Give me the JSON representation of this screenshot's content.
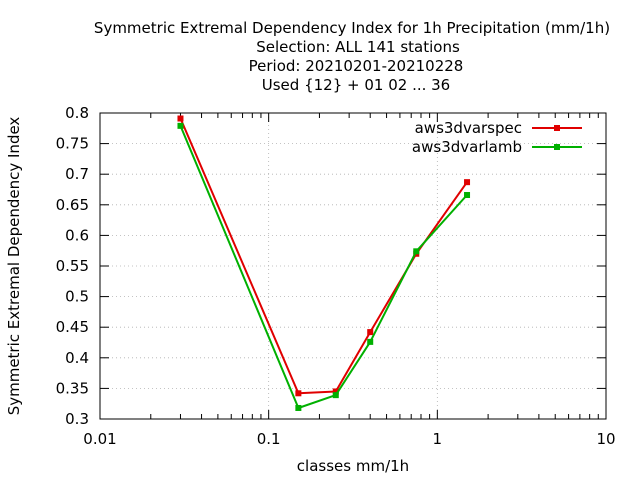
{
  "chart_data": {
    "type": "line",
    "title_lines": [
      "Symmetric Extremal Dependency Index  for 1h Precipitation (mm/1h)",
      "Selection: ALL    141 stations",
      "Period: 20210201-20210228",
      "Used {12} + 01 02 ... 36"
    ],
    "xlabel": "classes mm/1h",
    "ylabel": "Symmetric Extremal Dependency Index",
    "x_scale": "log",
    "xlim": [
      0.01,
      10
    ],
    "ylim": [
      0.3,
      0.8
    ],
    "x_ticks": [
      0.01,
      0.1,
      1,
      10
    ],
    "x_tick_labels": [
      "0.01",
      "0.1",
      "1",
      "10"
    ],
    "y_ticks": [
      0.3,
      0.35,
      0.4,
      0.45,
      0.5,
      0.55,
      0.6,
      0.65,
      0.7,
      0.75,
      0.8
    ],
    "y_tick_labels": [
      "0.3",
      "0.35",
      "0.4",
      "0.45",
      "0.5",
      "0.55",
      "0.6",
      "0.65",
      "0.7",
      "0.75",
      "0.8"
    ],
    "grid": true,
    "legend_position": "top-right",
    "x": [
      0.03,
      0.15,
      0.25,
      0.4,
      0.75,
      1.5
    ],
    "series": [
      {
        "name": "aws3dvarspec",
        "color": "#e00000",
        "values": [
          0.791,
          0.342,
          0.345,
          0.442,
          0.57,
          0.687
        ]
      },
      {
        "name": "aws3dvarlamb",
        "color": "#00b000",
        "values": [
          0.779,
          0.318,
          0.339,
          0.426,
          0.574,
          0.666
        ]
      }
    ]
  }
}
